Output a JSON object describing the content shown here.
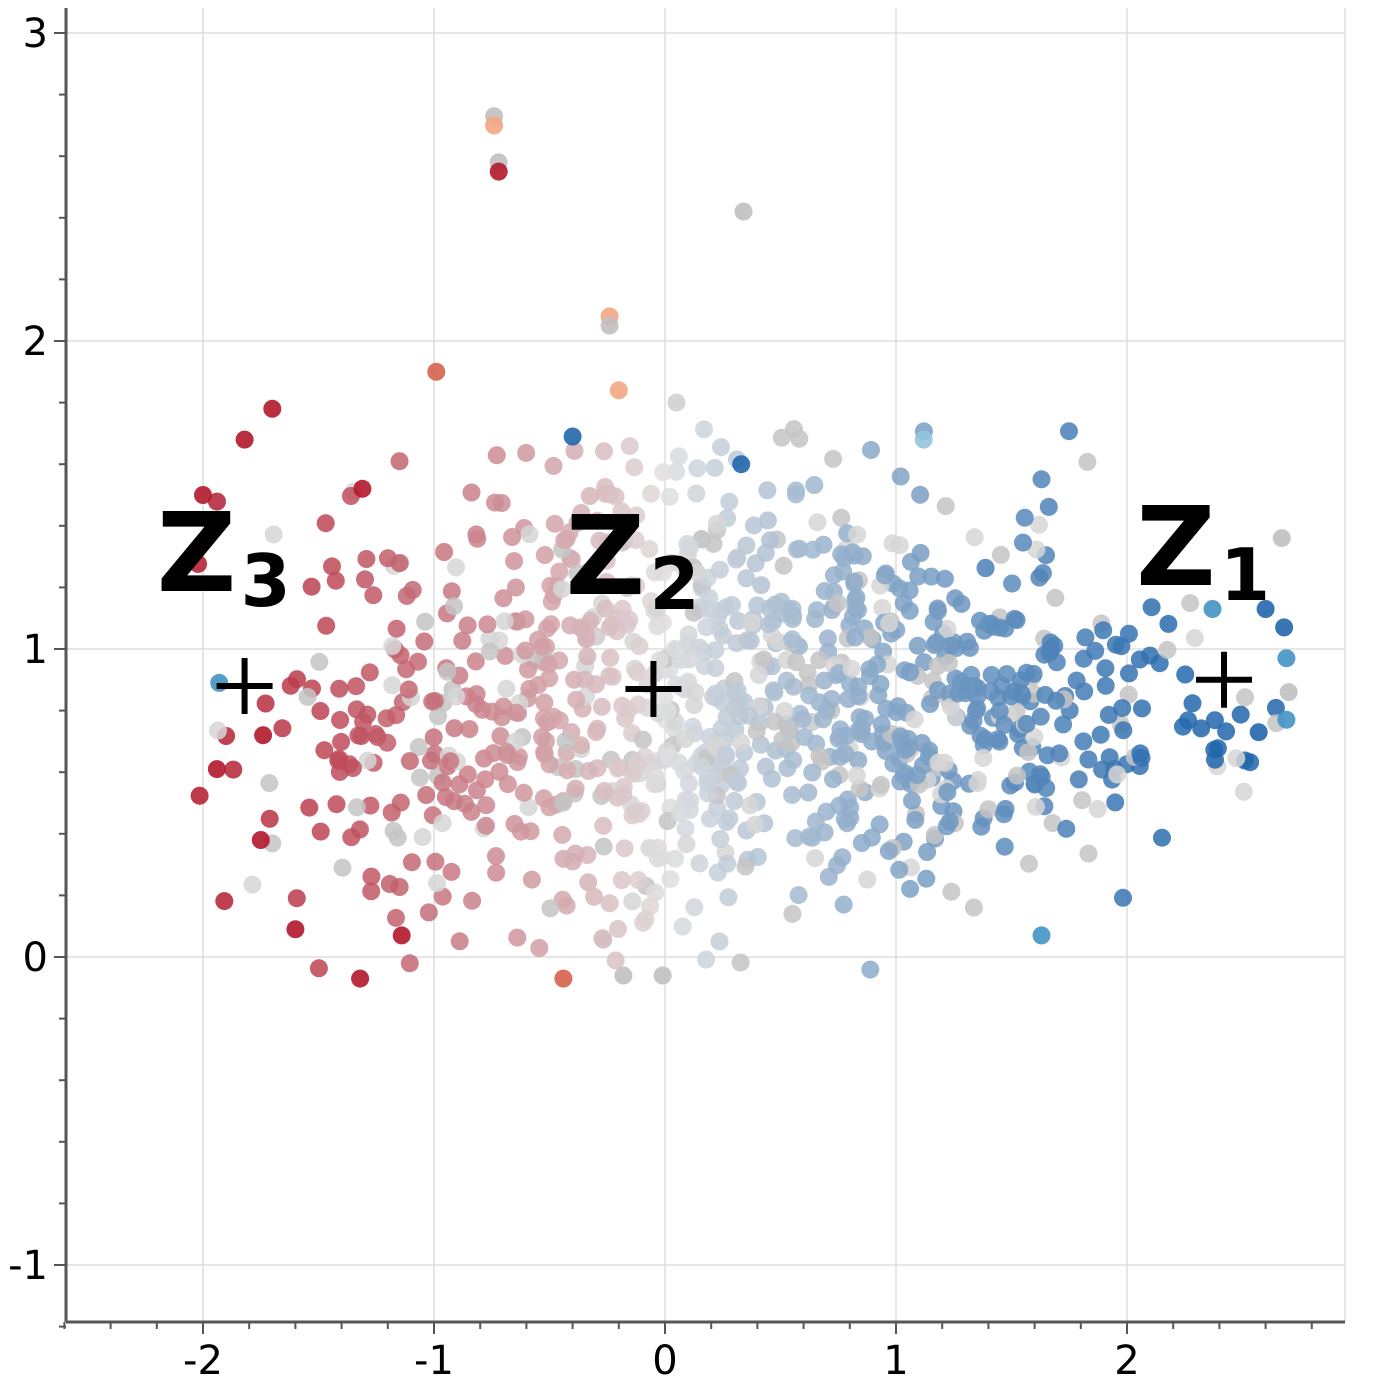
{
  "chart_data": {
    "type": "scatter",
    "title": "",
    "xlabel": "",
    "ylabel": "",
    "xlim": [
      -2.6,
      2.95
    ],
    "ylim": [
      -1.2,
      3.08
    ],
    "grid": true,
    "x_ticks": [
      {
        "value": -2,
        "label": "-2"
      },
      {
        "value": -1,
        "label": "-1"
      },
      {
        "value": 0,
        "label": "0"
      },
      {
        "value": 1,
        "label": "1"
      },
      {
        "value": 2,
        "label": "2"
      }
    ],
    "y_ticks": [
      {
        "value": -1,
        "label": "-1"
      },
      {
        "value": 0,
        "label": "0"
      },
      {
        "value": 1,
        "label": "1"
      },
      {
        "value": 2,
        "label": "2"
      },
      {
        "value": 3,
        "label": "3"
      }
    ],
    "color_scale": {
      "low": "#b2182b",
      "mid": "#e0e0e0",
      "high": "#2166ac",
      "mid_x": 0
    },
    "cluster_markers": [
      {
        "label": "Z",
        "subscript": "1",
        "x": 2.42,
        "y": 0.9
      },
      {
        "label": "Z",
        "subscript": "2",
        "x": -0.05,
        "y": 0.87
      },
      {
        "label": "Z",
        "subscript": "3",
        "x": -1.82,
        "y": 0.88
      }
    ],
    "outliers": [
      {
        "x": -0.74,
        "y": 2.73,
        "color": "#c0c0c0"
      },
      {
        "x": -0.74,
        "y": 2.7,
        "color": "#f4a582"
      },
      {
        "x": -0.72,
        "y": 2.58,
        "color": "#c0c0c0"
      },
      {
        "x": -0.72,
        "y": 2.55,
        "color": "#b2182b"
      },
      {
        "x": 0.34,
        "y": 2.42,
        "color": "#c0c0c0"
      },
      {
        "x": -0.24,
        "y": 2.08,
        "color": "#f4a582"
      },
      {
        "x": -0.24,
        "y": 2.05,
        "color": "#c0c0c0"
      },
      {
        "x": -0.99,
        "y": 1.9,
        "color": "#d6604d"
      },
      {
        "x": -0.2,
        "y": 1.84,
        "color": "#f4a582"
      },
      {
        "x": 0.05,
        "y": 1.8,
        "color": "#d0d0d0"
      },
      {
        "x": -1.7,
        "y": 1.78,
        "color": "#b2182b"
      },
      {
        "x": -1.82,
        "y": 1.68,
        "color": "#b2182b"
      },
      {
        "x": -2.0,
        "y": 1.5,
        "color": "#b2182b"
      },
      {
        "x": -1.31,
        "y": 1.52,
        "color": "#b2182b"
      },
      {
        "x": -0.4,
        "y": 1.69,
        "color": "#2166ac"
      },
      {
        "x": 1.12,
        "y": 1.68,
        "color": "#92c5de"
      },
      {
        "x": 0.33,
        "y": 1.6,
        "color": "#2166ac"
      },
      {
        "x": -1.93,
        "y": 0.89,
        "color": "#4393c3"
      },
      {
        "x": -1.94,
        "y": 0.61,
        "color": "#b2182b"
      },
      {
        "x": -1.74,
        "y": 0.72,
        "color": "#b2182b"
      },
      {
        "x": -1.75,
        "y": 0.38,
        "color": "#b2182b"
      },
      {
        "x": -1.6,
        "y": 0.09,
        "color": "#b2182b"
      },
      {
        "x": -1.32,
        "y": -0.07,
        "color": "#b2182b"
      },
      {
        "x": -1.14,
        "y": 0.07,
        "color": "#b2182b"
      },
      {
        "x": -0.18,
        "y": -0.06,
        "color": "#c0c0c0"
      },
      {
        "x": -0.01,
        "y": -0.06,
        "color": "#c0c0c0"
      },
      {
        "x": -0.44,
        "y": -0.07,
        "color": "#d6604d"
      },
      {
        "x": 1.63,
        "y": 0.07,
        "color": "#4393c3"
      },
      {
        "x": 2.68,
        "y": 1.07,
        "color": "#2166ac"
      },
      {
        "x": 2.69,
        "y": 0.97,
        "color": "#4393c3"
      },
      {
        "x": 2.7,
        "y": 0.86,
        "color": "#c0c0c0"
      },
      {
        "x": 2.69,
        "y": 0.77,
        "color": "#4393c3"
      },
      {
        "x": 2.57,
        "y": 0.73,
        "color": "#2166ac"
      },
      {
        "x": 2.67,
        "y": 1.36,
        "color": "#c0c0c0"
      },
      {
        "x": 2.6,
        "y": 1.13,
        "color": "#2166ac"
      },
      {
        "x": 2.37,
        "y": 1.13,
        "color": "#4393c3"
      }
    ]
  }
}
